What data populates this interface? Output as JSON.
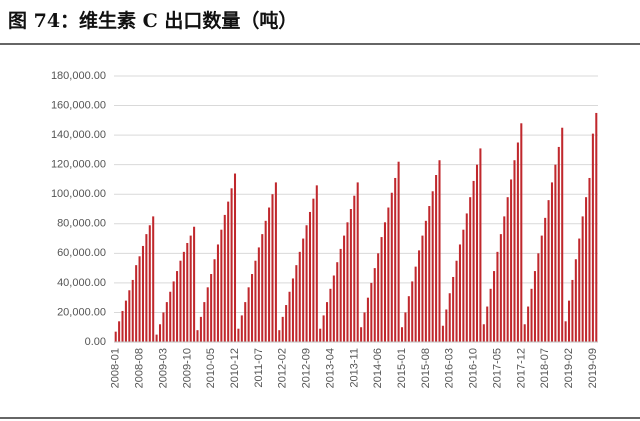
{
  "chart_data": {
    "type": "bar",
    "title": "图 74：维生素 C 出口数量（吨）",
    "categories": [
      "2008-01",
      null,
      null,
      null,
      null,
      null,
      null,
      "2008-08",
      null,
      null,
      null,
      null,
      null,
      null,
      "2009-03",
      null,
      null,
      null,
      null,
      null,
      null,
      "2009-10",
      null,
      null,
      null,
      null,
      null,
      null,
      "2010-05",
      null,
      null,
      null,
      null,
      null,
      null,
      "2010-12",
      null,
      null,
      null,
      null,
      null,
      null,
      "2011-07",
      null,
      null,
      null,
      null,
      null,
      null,
      "2012-02",
      null,
      null,
      null,
      null,
      null,
      null,
      "2012-09",
      null,
      null,
      null,
      null,
      null,
      null,
      "2013-04",
      null,
      null,
      null,
      null,
      null,
      null,
      "2013-11",
      null,
      null,
      null,
      null,
      null,
      null,
      "2014-06",
      null,
      null,
      null,
      null,
      null,
      null,
      "2015-01",
      null,
      null,
      null,
      null,
      null,
      null,
      "2015-08",
      null,
      null,
      null,
      null,
      null,
      null,
      "2016-03",
      null,
      null,
      null,
      null,
      null,
      null,
      "2016-10",
      null,
      null,
      null,
      null,
      null,
      null,
      "2017-05",
      null,
      null,
      null,
      null,
      null,
      null,
      "2017-12",
      null,
      null,
      null,
      null,
      null,
      null,
      "2018-07",
      null,
      null,
      null,
      null,
      null,
      null,
      "2019-02",
      null,
      null,
      null,
      null,
      null,
      null,
      "2019-09",
      null
    ],
    "values": [
      7000,
      14000,
      21000,
      28000,
      35000,
      42000,
      52000,
      58000,
      65000,
      73000,
      79000,
      85000,
      5000,
      12000,
      20000,
      27000,
      34000,
      41000,
      48000,
      55000,
      61000,
      67000,
      72000,
      78000,
      8000,
      17000,
      27000,
      37000,
      46000,
      56000,
      66000,
      76000,
      86000,
      95000,
      104000,
      114000,
      9000,
      18000,
      27000,
      37000,
      46000,
      55000,
      64000,
      73000,
      82000,
      91000,
      100000,
      108000,
      8000,
      17000,
      25000,
      34000,
      43000,
      52000,
      61000,
      70000,
      79000,
      88000,
      97000,
      106000,
      9000,
      18000,
      27000,
      36000,
      45000,
      54000,
      63000,
      72000,
      81000,
      90000,
      99000,
      108000,
      10000,
      20000,
      30000,
      40000,
      50000,
      60000,
      71000,
      81000,
      91000,
      101000,
      111000,
      122000,
      10000,
      20000,
      31000,
      41000,
      51000,
      62000,
      72000,
      82000,
      92000,
      102000,
      113000,
      123000,
      11000,
      22000,
      33000,
      44000,
      55000,
      66000,
      76000,
      87000,
      98000,
      109000,
      120000,
      131000,
      12000,
      24000,
      36000,
      48000,
      61000,
      73000,
      85000,
      98000,
      110000,
      123000,
      135000,
      148000,
      12000,
      24000,
      36000,
      48000,
      60000,
      72000,
      84000,
      96000,
      108000,
      120000,
      132000,
      145000,
      14000,
      28000,
      42000,
      56000,
      70000,
      85000,
      98000,
      111000,
      141000,
      155000
    ],
    "color": "#c0282d",
    "ylim": [
      0,
      180000
    ],
    "yticks": [
      {
        "value": 0,
        "label": "0.00"
      },
      {
        "value": 20000,
        "label": "20,000.00"
      },
      {
        "value": 40000,
        "label": "40,000.00"
      },
      {
        "value": 60000,
        "label": "60,000.00"
      },
      {
        "value": 80000,
        "label": "80,000.00"
      },
      {
        "value": 100000,
        "label": "100,000.00"
      },
      {
        "value": 120000,
        "label": "120,000.00"
      },
      {
        "value": 140000,
        "label": "140,000.00"
      },
      {
        "value": 160000,
        "label": "160,000.00"
      },
      {
        "value": 180000,
        "label": "180,000.00"
      }
    ],
    "grid": true
  }
}
